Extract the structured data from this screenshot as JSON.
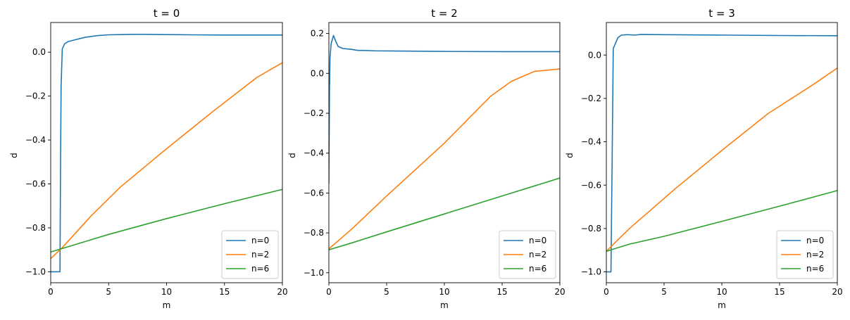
{
  "chart_data": [
    {
      "type": "line",
      "title": "t = 0",
      "xlabel": "m",
      "ylabel": "d",
      "xlim": [
        0,
        20
      ],
      "ylim": [
        -1.05,
        0.135
      ],
      "xticks": [
        0,
        5,
        10,
        15,
        20
      ],
      "xtick_labels": [
        "0",
        "5",
        "10",
        "15",
        "20"
      ],
      "yticks": [
        0.0,
        -0.2,
        -0.4,
        -0.6,
        -0.8,
        -1.0
      ],
      "ytick_labels": [
        "0.0",
        "−0.2",
        "−0.4",
        "−0.6",
        "−0.8",
        "−1.0"
      ],
      "legend_position": "lower-right",
      "grid": false,
      "series": [
        {
          "name": "n=0",
          "color": "#1f77b4",
          "points": [
            [
              0,
              -1.0
            ],
            [
              0.8,
              -1.0
            ],
            [
              0.85,
              -0.5
            ],
            [
              0.9,
              -0.15
            ],
            [
              1.0,
              0.015
            ],
            [
              1.2,
              0.038
            ],
            [
              1.5,
              0.048
            ],
            [
              2,
              0.055
            ],
            [
              3,
              0.068
            ],
            [
              4,
              0.075
            ],
            [
              5,
              0.079
            ],
            [
              6,
              0.08
            ],
            [
              7,
              0.081
            ],
            [
              8,
              0.081
            ],
            [
              10,
              0.08
            ],
            [
              12,
              0.079
            ],
            [
              15,
              0.078
            ],
            [
              18,
              0.078
            ],
            [
              20,
              0.078
            ]
          ]
        },
        {
          "name": "n=2",
          "color": "#ff7f0e",
          "points": [
            [
              0,
              -0.94
            ],
            [
              1,
              -0.89
            ],
            [
              3.5,
              -0.745
            ],
            [
              6,
              -0.615
            ],
            [
              10,
              -0.44
            ],
            [
              14,
              -0.27
            ],
            [
              17.8,
              -0.115
            ],
            [
              20,
              -0.048
            ]
          ]
        },
        {
          "name": "n=6",
          "color": "#2ca02c",
          "points": [
            [
              0,
              -0.91
            ],
            [
              5,
              -0.83
            ],
            [
              10,
              -0.758
            ],
            [
              15,
              -0.69
            ],
            [
              20,
              -0.625
            ]
          ]
        }
      ]
    },
    {
      "type": "line",
      "title": "t = 2",
      "xlabel": "m",
      "ylabel": "d",
      "xlim": [
        0,
        20
      ],
      "ylim": [
        -1.05,
        0.255
      ],
      "xticks": [
        0,
        5,
        10,
        15,
        20
      ],
      "xtick_labels": [
        "0",
        "5",
        "10",
        "15",
        "20"
      ],
      "yticks": [
        0.2,
        0.0,
        -0.2,
        -0.4,
        -0.6,
        -0.8,
        -1.0
      ],
      "ytick_labels": [
        "0.2",
        "0.0",
        "−0.2",
        "−0.4",
        "−0.6",
        "−0.8",
        "−1.0"
      ],
      "legend_position": "lower-right",
      "grid": false,
      "series": [
        {
          "name": "n=0",
          "color": "#1f77b4",
          "points": [
            [
              0,
              -0.55
            ],
            [
              0.05,
              -0.1
            ],
            [
              0.1,
              0.08
            ],
            [
              0.2,
              0.15
            ],
            [
              0.4,
              0.19
            ],
            [
              0.6,
              0.16
            ],
            [
              0.8,
              0.135
            ],
            [
              1.2,
              0.125
            ],
            [
              2,
              0.12
            ],
            [
              2.5,
              0.115
            ],
            [
              3,
              0.115
            ],
            [
              4,
              0.113
            ],
            [
              6,
              0.112
            ],
            [
              10,
              0.11
            ],
            [
              15,
              0.109
            ],
            [
              20,
              0.109
            ]
          ]
        },
        {
          "name": "n=2",
          "color": "#ff7f0e",
          "points": [
            [
              0,
              -0.88
            ],
            [
              2,
              -0.78
            ],
            [
              5,
              -0.615
            ],
            [
              10,
              -0.35
            ],
            [
              14,
              -0.115
            ],
            [
              15.8,
              -0.04
            ],
            [
              17.8,
              0.01
            ],
            [
              20,
              0.022
            ]
          ]
        },
        {
          "name": "n=6",
          "color": "#2ca02c",
          "points": [
            [
              0,
              -0.885
            ],
            [
              2,
              -0.85
            ],
            [
              5,
              -0.795
            ],
            [
              10,
              -0.705
            ],
            [
              15,
              -0.615
            ],
            [
              20,
              -0.525
            ]
          ]
        }
      ]
    },
    {
      "type": "line",
      "title": "t = 3",
      "xlabel": "m",
      "ylabel": "d",
      "xlim": [
        0,
        20
      ],
      "ylim": [
        -1.05,
        0.15
      ],
      "xticks": [
        0,
        5,
        10,
        15,
        20
      ],
      "xtick_labels": [
        "0",
        "5",
        "10",
        "15",
        "20"
      ],
      "yticks": [
        0.0,
        -0.2,
        -0.4,
        -0.6,
        -0.8,
        -1.0
      ],
      "ytick_labels": [
        "0.0",
        "−0.2",
        "−0.4",
        "−0.6",
        "−0.8",
        "−1.0"
      ],
      "legend_position": "lower-right",
      "grid": false,
      "series": [
        {
          "name": "n=0",
          "color": "#1f77b4",
          "points": [
            [
              0,
              -1.0
            ],
            [
              0.4,
              -1.0
            ],
            [
              0.5,
              -0.5
            ],
            [
              0.6,
              0.03
            ],
            [
              0.8,
              0.055
            ],
            [
              1,
              0.08
            ],
            [
              1.3,
              0.092
            ],
            [
              1.8,
              0.094
            ],
            [
              2.5,
              0.092
            ],
            [
              3,
              0.095
            ],
            [
              5,
              0.094
            ],
            [
              10,
              0.092
            ],
            [
              15,
              0.09
            ],
            [
              20,
              0.089
            ]
          ]
        },
        {
          "name": "n=2",
          "color": "#ff7f0e",
          "points": [
            [
              0,
              -0.905
            ],
            [
              2,
              -0.8
            ],
            [
              6,
              -0.615
            ],
            [
              10,
              -0.44
            ],
            [
              14,
              -0.27
            ],
            [
              17.8,
              -0.14
            ],
            [
              20,
              -0.06
            ]
          ]
        },
        {
          "name": "n=6",
          "color": "#2ca02c",
          "points": [
            [
              0,
              -0.905
            ],
            [
              2,
              -0.872
            ],
            [
              5,
              -0.836
            ],
            [
              10,
              -0.767
            ],
            [
              15,
              -0.697
            ],
            [
              20,
              -0.625
            ]
          ]
        }
      ]
    }
  ]
}
